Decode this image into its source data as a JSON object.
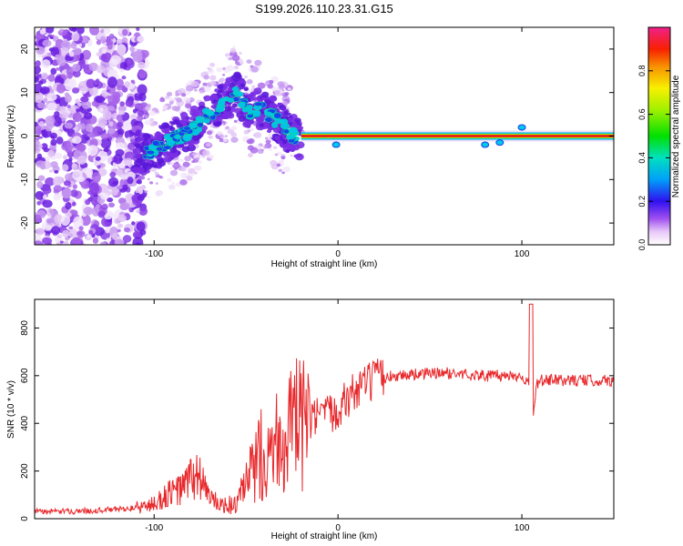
{
  "figure": {
    "title": "S199.2026.110.23.31.G15"
  },
  "chart_data": [
    {
      "type": "heatmap",
      "title": "S199.2026.110.23.31.G15",
      "xlabel": "Height of straight line (km)",
      "ylabel": "Frequency (Hz)",
      "xlim": [
        -165,
        150
      ],
      "ylim": [
        -25,
        25
      ],
      "xticks": [
        -100,
        0,
        100
      ],
      "yticks": [
        20,
        10,
        0,
        -10,
        -20
      ],
      "colorbar": {
        "label": "Normalized spectral amplitude",
        "range": [
          0,
          1
        ],
        "ticks": [
          "0.0",
          "0.2",
          "0.4",
          "0.6",
          "0.8"
        ]
      },
      "ridge": [
        {
          "x": -160,
          "f": null
        },
        {
          "x": -120,
          "f": null
        },
        {
          "x": -105,
          "f": -4
        },
        {
          "x": -95,
          "f": -2
        },
        {
          "x": -85,
          "f": 0
        },
        {
          "x": -75,
          "f": 3
        },
        {
          "x": -65,
          "f": 7
        },
        {
          "x": -55,
          "f": 10
        },
        {
          "x": -48,
          "f": 6
        },
        {
          "x": -40,
          "f": 6
        },
        {
          "x": -32,
          "f": 3
        },
        {
          "x": -25,
          "f": 0
        },
        {
          "x": -15,
          "f": -1
        },
        {
          "x": -5,
          "f": 0
        },
        {
          "x": 0,
          "f": -2
        },
        {
          "x": 10,
          "f": 0
        },
        {
          "x": 50,
          "f": 0
        },
        {
          "x": 100,
          "f": 0
        },
        {
          "x": 150,
          "f": 0
        }
      ]
    },
    {
      "type": "line",
      "xlabel": "Height of straight line (km)",
      "ylabel": "SNR (10 * v/v)",
      "xlim": [
        -165,
        150
      ],
      "ylim": [
        0,
        920
      ],
      "xticks": [
        -100,
        0,
        100
      ],
      "yticks": [
        0,
        200,
        400,
        600,
        800
      ],
      "color": "#e8282b",
      "series": [
        {
          "name": "SNR",
          "x": [
            -165,
            -150,
            -130,
            -110,
            -100,
            -95,
            -90,
            -85,
            -80,
            -75,
            -70,
            -65,
            -60,
            -55,
            -50,
            -45,
            -40,
            -35,
            -30,
            -25,
            -20,
            -15,
            -10,
            -5,
            0,
            5,
            10,
            15,
            20,
            25,
            30,
            40,
            50,
            60,
            70,
            80,
            90,
            100,
            104,
            106,
            108,
            110,
            120,
            130,
            140,
            150
          ],
          "values": [
            30,
            30,
            35,
            45,
            60,
            90,
            110,
            125,
            170,
            180,
            90,
            60,
            55,
            60,
            140,
            220,
            300,
            320,
            350,
            380,
            390,
            400,
            430,
            430,
            470,
            500,
            540,
            560,
            580,
            590,
            600,
            605,
            610,
            610,
            605,
            600,
            600,
            600,
            560,
            400,
            560,
            580,
            580,
            580,
            580,
            580
          ]
        }
      ]
    }
  ]
}
